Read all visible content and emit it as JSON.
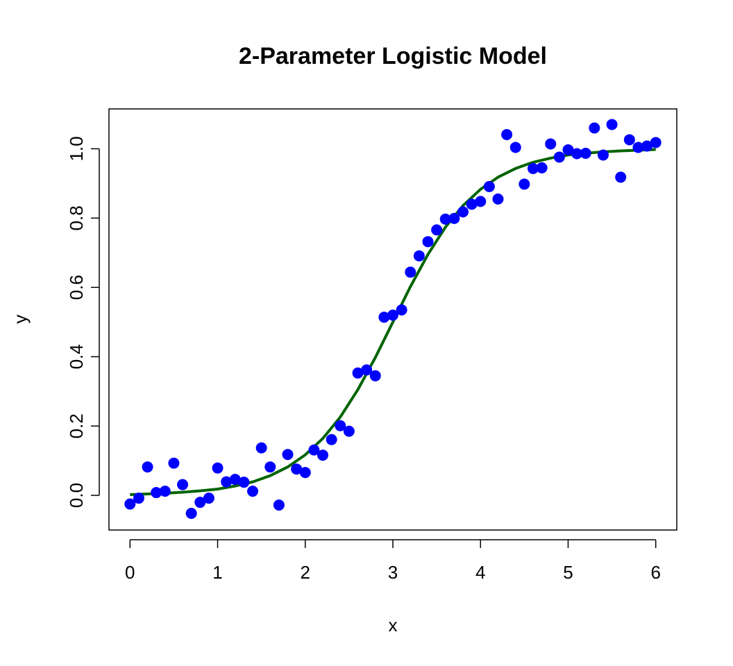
{
  "chart_data": {
    "type": "scatter",
    "title": "2-Parameter Logistic Model",
    "xlabel": "x",
    "ylabel": "y",
    "xlim": [
      -0.24,
      6.24
    ],
    "ylim": [
      -0.1,
      1.115
    ],
    "xticks": [
      0,
      1,
      2,
      3,
      4,
      5,
      6
    ],
    "xtick_labels": [
      "0",
      "1",
      "2",
      "3",
      "4",
      "5",
      "6"
    ],
    "yticks": [
      0.0,
      0.2,
      0.4,
      0.6,
      0.8,
      1.0
    ],
    "ytick_labels": [
      "0.0",
      "0.2",
      "0.4",
      "0.6",
      "0.8",
      "1.0"
    ],
    "grid": false,
    "legend": "none",
    "colors": {
      "points": "#0000ff",
      "curve": "#006400",
      "axes": "#000000"
    },
    "series": [
      {
        "kind": "points",
        "x": [
          0.0,
          0.1,
          0.2,
          0.3,
          0.4,
          0.5,
          0.6,
          0.7,
          0.8,
          0.9,
          1.0,
          1.1,
          1.2,
          1.3,
          1.4,
          1.5,
          1.6,
          1.7,
          1.8,
          1.9,
          2.0,
          2.1,
          2.2,
          2.3,
          2.4,
          2.5,
          2.6,
          2.7,
          2.8,
          2.9,
          3.0,
          3.1,
          3.2,
          3.3,
          3.4,
          3.5,
          3.6,
          3.7,
          3.8,
          3.9,
          4.0,
          4.1,
          4.2,
          4.3,
          4.4,
          4.5,
          4.6,
          4.7,
          4.8,
          4.9,
          5.0,
          5.1,
          5.2,
          5.3,
          5.4,
          5.5,
          5.6,
          5.7,
          5.8,
          5.9,
          6.0
        ],
        "y": [
          -0.025,
          -0.008,
          0.082,
          0.008,
          0.012,
          0.093,
          0.031,
          -0.052,
          -0.02,
          -0.008,
          0.079,
          0.039,
          0.046,
          0.038,
          0.012,
          0.137,
          0.082,
          -0.028,
          0.118,
          0.076,
          0.066,
          0.131,
          0.116,
          0.161,
          0.201,
          0.185,
          0.353,
          0.362,
          0.345,
          0.514,
          0.52,
          0.535,
          0.644,
          0.691,
          0.732,
          0.766,
          0.797,
          0.799,
          0.818,
          0.84,
          0.848,
          0.891,
          0.855,
          1.041,
          1.004,
          0.898,
          0.943,
          0.945,
          1.014,
          0.976,
          0.997,
          0.986,
          0.987,
          1.06,
          0.982,
          1.07,
          0.918,
          1.026,
          1.004,
          1.008,
          1.018
        ]
      },
      {
        "kind": "line",
        "x": [
          0.0,
          0.2,
          0.4,
          0.6,
          0.8,
          1.0,
          1.2,
          1.4,
          1.6,
          1.8,
          2.0,
          2.2,
          2.4,
          2.6,
          2.8,
          3.0,
          3.2,
          3.4,
          3.6,
          3.8,
          4.0,
          4.2,
          4.4,
          4.6,
          4.8,
          5.0,
          5.2,
          5.4,
          5.6,
          5.8,
          6.0
        ],
        "y": [
          0.002,
          0.004,
          0.006,
          0.009,
          0.013,
          0.018,
          0.027,
          0.039,
          0.057,
          0.082,
          0.117,
          0.164,
          0.226,
          0.305,
          0.398,
          0.5,
          0.602,
          0.695,
          0.774,
          0.836,
          0.883,
          0.918,
          0.943,
          0.961,
          0.973,
          0.982,
          0.987,
          0.991,
          0.994,
          0.996,
          0.998
        ]
      }
    ]
  }
}
